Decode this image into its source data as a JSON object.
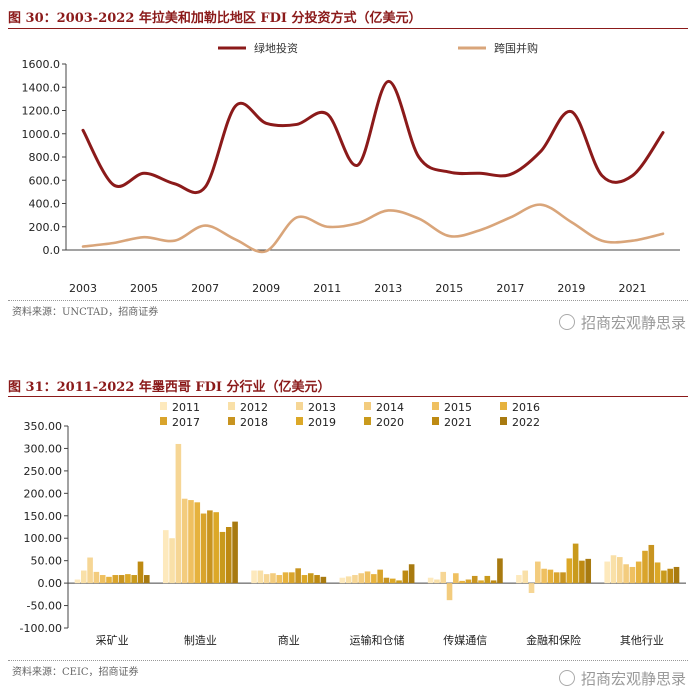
{
  "chart1": {
    "title": "图 30：2003-2022 年拉美和加勒比地区 FDI 分投资方式（亿美元）",
    "source": "资料来源：UNCTAD，招商证券",
    "watermark": "招商宏观静思录",
    "chart_data": {
      "type": "line",
      "x": [
        2003,
        2004,
        2005,
        2006,
        2007,
        2008,
        2009,
        2010,
        2011,
        2012,
        2013,
        2014,
        2015,
        2016,
        2017,
        2018,
        2019,
        2020,
        2021,
        2022
      ],
      "x_tick_labels": [
        "2003",
        "2005",
        "2007",
        "2009",
        "2011",
        "2013",
        "2015",
        "2017",
        "2019",
        "2021"
      ],
      "ylim": [
        0,
        1600
      ],
      "y_tick_labels": [
        "0.0",
        "200.0",
        "400.0",
        "600.0",
        "800.0",
        "1000.0",
        "1200.0",
        "1400.0",
        "1600.0"
      ],
      "legend_position": "top",
      "series": [
        {
          "name": "绿地投资",
          "color": "#8b1a1a",
          "values": [
            1030,
            560,
            660,
            570,
            540,
            1240,
            1090,
            1080,
            1170,
            730,
            1450,
            800,
            670,
            660,
            650,
            850,
            1190,
            640,
            640,
            1010
          ]
        },
        {
          "name": "跨国并购",
          "color": "#d9a57a",
          "values": [
            30,
            60,
            110,
            80,
            210,
            90,
            -10,
            280,
            200,
            230,
            340,
            270,
            120,
            170,
            280,
            390,
            240,
            80,
            80,
            140
          ]
        }
      ]
    }
  },
  "chart2": {
    "title": "图 31：2011-2022 年墨西哥 FDI 分行业（亿美元）",
    "source": "资料来源：CEIC，招商证券",
    "watermark": "招商宏观静思录",
    "chart_data": {
      "type": "bar",
      "categories": [
        "采矿业",
        "制造业",
        "商业",
        "运输和仓储",
        "传媒通信",
        "金融和保险",
        "其他行业"
      ],
      "ylim": [
        -100,
        350
      ],
      "y_tick_labels": [
        "-100.00",
        "-50.00",
        "0.00",
        "50.00",
        "100.00",
        "150.00",
        "200.00",
        "250.00",
        "300.00",
        "350.00"
      ],
      "legend_position": "top",
      "series": [
        {
          "name": "2011",
          "color": "#fde9bd",
          "values": [
            8,
            118,
            28,
            12,
            12,
            18,
            48
          ]
        },
        {
          "name": "2012",
          "color": "#f9e0a8",
          "values": [
            28,
            100,
            28,
            15,
            8,
            28,
            62
          ]
        },
        {
          "name": "2013",
          "color": "#f6d695",
          "values": [
            57,
            310,
            20,
            18,
            25,
            -22,
            58
          ]
        },
        {
          "name": "2014",
          "color": "#f3cc7e",
          "values": [
            25,
            188,
            22,
            22,
            -38,
            48,
            42
          ]
        },
        {
          "name": "2015",
          "color": "#efc060",
          "values": [
            18,
            185,
            18,
            26,
            22,
            32,
            36
          ]
        },
        {
          "name": "2016",
          "color": "#e6b23e",
          "values": [
            14,
            180,
            24,
            20,
            5,
            30,
            48
          ]
        },
        {
          "name": "2017",
          "color": "#d9a42c",
          "values": [
            18,
            155,
            24,
            30,
            8,
            24,
            72
          ]
        },
        {
          "name": "2018",
          "color": "#c89420",
          "values": [
            18,
            162,
            33,
            12,
            16,
            24,
            85
          ]
        },
        {
          "name": "2019",
          "color": "#dca828",
          "values": [
            20,
            158,
            18,
            10,
            6,
            55,
            46
          ]
        },
        {
          "name": "2020",
          "color": "#c99a1c",
          "values": [
            18,
            114,
            22,
            6,
            16,
            88,
            28
          ]
        },
        {
          "name": "2021",
          "color": "#be8a12",
          "values": [
            48,
            125,
            18,
            28,
            6,
            50,
            32
          ]
        },
        {
          "name": "2022",
          "color": "#a87a10",
          "values": [
            18,
            137,
            14,
            42,
            55,
            54,
            36
          ]
        }
      ]
    }
  }
}
